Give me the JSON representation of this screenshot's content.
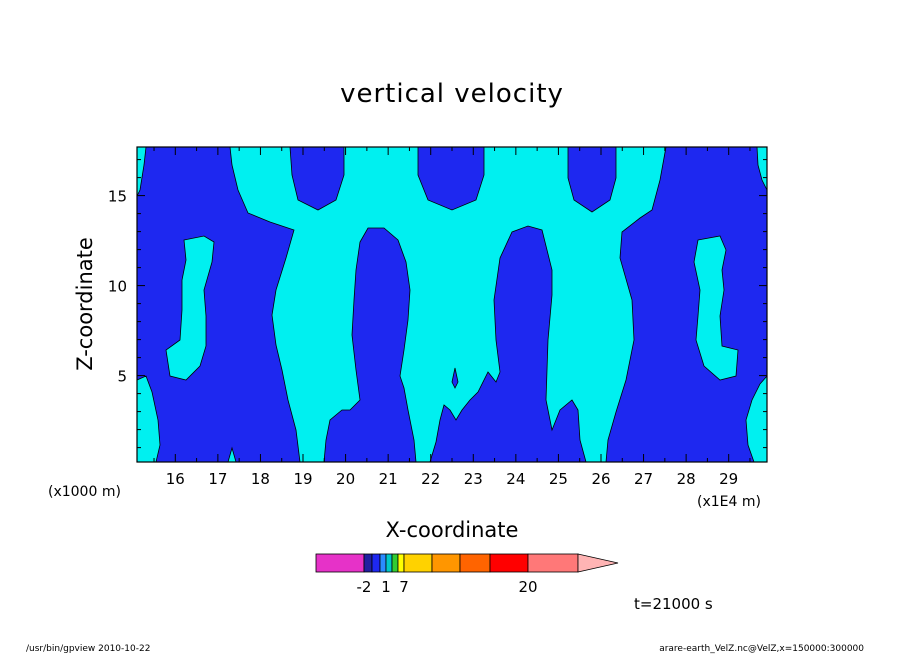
{
  "chart_data": {
    "type": "heatmap",
    "title": "vertical velocity",
    "xlabel": "X-coordinate",
    "ylabel": "Z-coordinate",
    "x_scale_note": "(x1000 m)",
    "x_unit_note": "(x1E4 m)",
    "xlim": [
      15.1,
      29.9
    ],
    "ylim": [
      0.2,
      17.7
    ],
    "x_ticks": [
      16,
      17,
      18,
      19,
      20,
      21,
      22,
      23,
      24,
      25,
      26,
      27,
      28,
      29
    ],
    "y_ticks": [
      5,
      10,
      15
    ],
    "grid": false,
    "field_colors": {
      "negative_region": "#1e28f0",
      "positive_region": "#00f0f0"
    },
    "colorbar": {
      "colors": [
        "#e632c8",
        "#2020a0",
        "#1e28f0",
        "#2a8cff",
        "#00c8c8",
        "#32cd32",
        "#ffff00",
        "#ffd200",
        "#ff9600",
        "#ff6400",
        "#ff0000",
        "#ff7878",
        "#ffb4b4"
      ],
      "tick_labels": [
        "-2",
        "1",
        "7",
        "20"
      ]
    },
    "annotation": "t=21000 s"
  },
  "footer": {
    "left": "/usr/bin/gpview   2010-10-22",
    "right": "arare-earth_VelZ.nc@VelZ,x=150000:300000"
  }
}
